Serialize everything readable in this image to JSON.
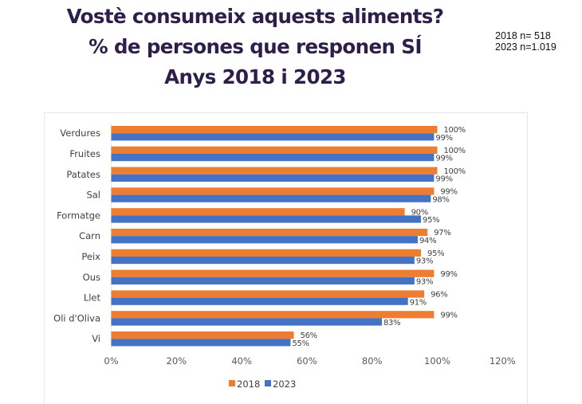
{
  "header": {
    "title_lines": [
      "Vostè consumeix aquests aliments?",
      "% de persones que responen SÍ",
      "Anys 2018 i 2023"
    ],
    "sample_sizes": [
      "2018 n= 518",
      "2023 n=1.019"
    ]
  },
  "chart_data": {
    "type": "bar",
    "orientation": "horizontal",
    "title": "Vostè consumeix aquests aliments? % de persones que responen SÍ Anys 2018 i 2023",
    "xlabel": "",
    "ylabel": "",
    "xlim": [
      0,
      120
    ],
    "x_ticks": [
      0,
      20,
      40,
      60,
      80,
      100,
      120
    ],
    "x_tick_labels": [
      "0%",
      "20%",
      "40%",
      "60%",
      "80%",
      "100%",
      "120%"
    ],
    "grid": false,
    "legend_position": "bottom",
    "categories": [
      "Verdures",
      "Fruites",
      "Patates",
      "Sal",
      "Formatge",
      "Carn",
      "Peix",
      "Ous",
      "Llet",
      "Oli d'Oliva",
      "Vi"
    ],
    "series": [
      {
        "name": "2018",
        "color": "#ED7D31",
        "values": [
          100,
          100,
          100,
          99,
          90,
          97,
          95,
          99,
          96,
          99,
          56
        ],
        "labels": [
          "100%",
          "100%",
          "100%",
          "99%",
          "90%",
          "97%",
          "95%",
          "99%",
          "96%",
          "99%",
          "56%"
        ]
      },
      {
        "name": "2023",
        "color": "#4472C4",
        "values": [
          99,
          99,
          99,
          98,
          95,
          94,
          93,
          93,
          91,
          83,
          55
        ],
        "labels": [
          "99%",
          "99%",
          "99%",
          "98%",
          "95%",
          "94%",
          "93%",
          "93%",
          "91%",
          "83%",
          "55%"
        ]
      }
    ]
  }
}
